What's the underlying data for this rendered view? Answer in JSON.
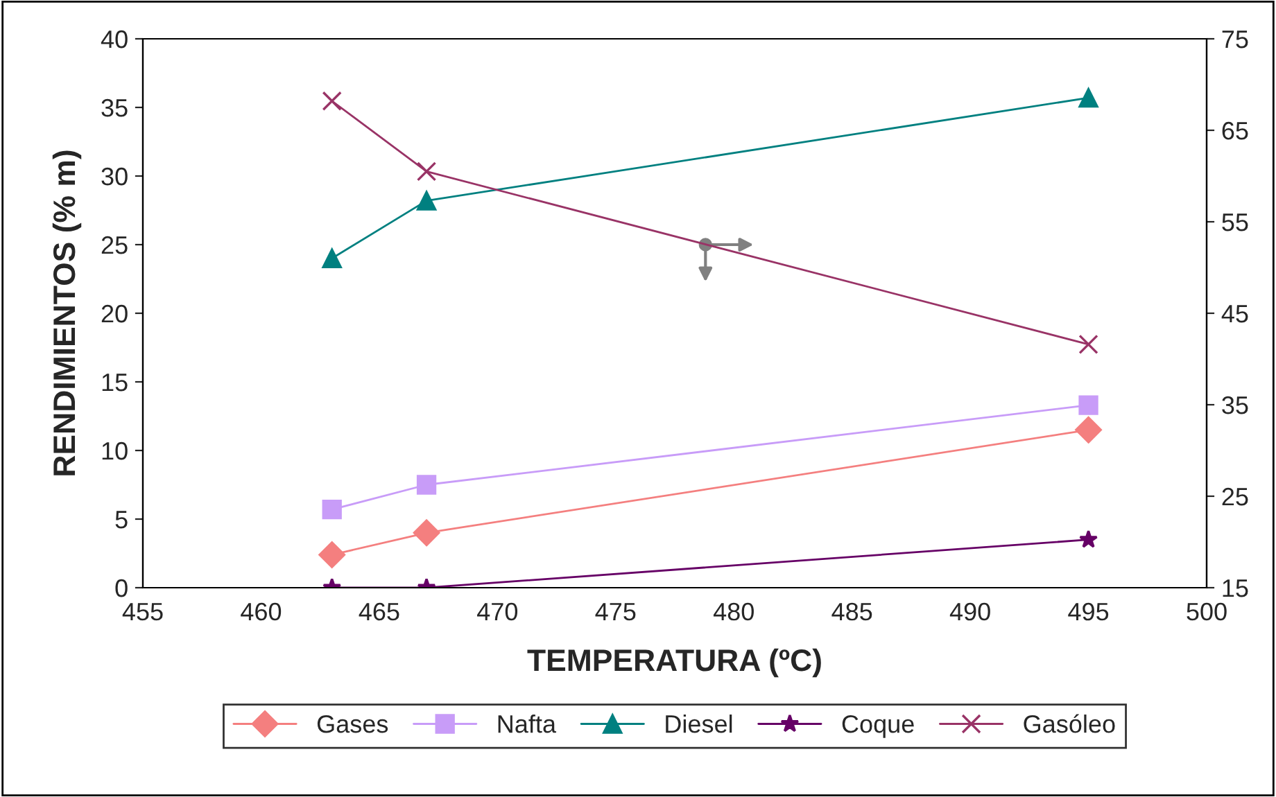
{
  "chart_data": {
    "type": "line",
    "xlabel": "TEMPERATURA (ºC)",
    "ylabel": "RENDIMIENTOS (% m)",
    "x": [
      463,
      467,
      495
    ],
    "series": [
      {
        "name": "Gases",
        "color": "#f47f7f",
        "marker": "diamond",
        "values": [
          2.4,
          4.0,
          11.5
        ]
      },
      {
        "name": "Nafta",
        "color": "#c89cf8",
        "marker": "square",
        "values": [
          5.7,
          7.5,
          13.3
        ]
      },
      {
        "name": "Diesel",
        "color": "#008080",
        "marker": "triangle",
        "values": [
          24.0,
          28.2,
          35.7
        ]
      },
      {
        "name": "Coque",
        "color": "#660066",
        "marker": "star",
        "values": [
          0,
          0,
          3.5
        ]
      },
      {
        "name": "Gasóleo",
        "color": "#993366",
        "marker": "cross",
        "axis": "y2",
        "values": [
          68.2,
          60.5,
          41.6
        ]
      }
    ],
    "xlim": [
      455,
      500
    ],
    "xticks": [
      455,
      460,
      465,
      470,
      475,
      480,
      485,
      490,
      495,
      500
    ],
    "ylim": [
      0,
      40
    ],
    "yticks": [
      0,
      5,
      10,
      15,
      20,
      25,
      30,
      35,
      40
    ],
    "y2lim": [
      15,
      75
    ],
    "y2ticks": [
      15,
      25,
      35,
      45,
      55,
      65,
      75
    ],
    "legend": "bottom",
    "grid": false
  }
}
